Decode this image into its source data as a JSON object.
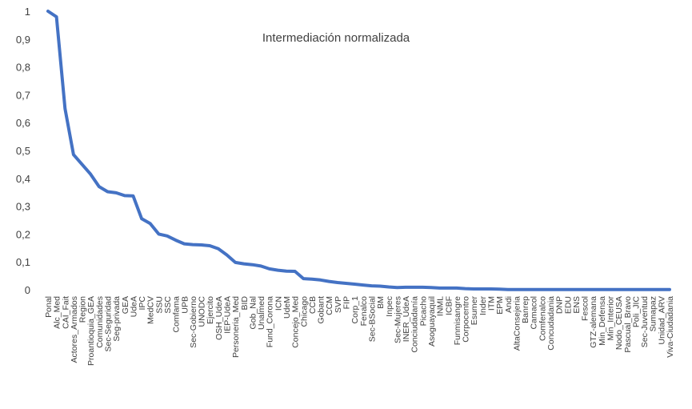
{
  "chart_data": {
    "type": "line",
    "title": "Intermediación normalizada",
    "xlabel": "",
    "ylabel": "",
    "ylim": [
      0,
      1
    ],
    "yticks": [
      "0",
      "0,1",
      "0,2",
      "0,3",
      "0,4",
      "0,5",
      "0,6",
      "0,7",
      "0,8",
      "0,9",
      "1"
    ],
    "grid": false,
    "legend": "none",
    "line_color": "#4472c4",
    "categories": [
      "Ponal",
      "Alc_Med",
      "CAI_Fait",
      "Actores_Armados",
      "Region",
      "Proantioquia_GEA",
      "Comunidades",
      "Sec-Seguridad",
      "Seg-privada",
      "GEA",
      "UdeA",
      "IPC",
      "MedCV",
      "SSU",
      "SSC",
      "Comfama",
      "UPB",
      "Sec-Gobierno",
      "UNODC",
      "Ejercito",
      "OSH_UdeA",
      "IEP-UdeA",
      "Personeria_Med",
      "BID",
      "Gob_Nal",
      "Unalmed",
      "Fund_Corona",
      "ICN",
      "UdeM",
      "Concejo_Med",
      "Chicago",
      "CCB",
      "Gobant",
      "CCM",
      "SVP",
      "FIP",
      "Corp_1",
      "Fenalco",
      "Sec-BSocial",
      "BM",
      "Inpec",
      "Sec-Mujeres",
      "INER_UdeA",
      "Conciudadanía",
      "Picacho",
      "Asoguayaquil",
      "INML",
      "ICBF",
      "Funmisangre",
      "Corpocentro",
      "Esumer",
      "Inder",
      "ITM",
      "EPM",
      "Andi",
      "AltaConsejeria",
      "Banrep",
      "Camacol",
      "Comfenalco",
      "Concudadania",
      "DNP",
      "EDU",
      "ENS",
      "Fescol",
      "GTZ-alemana",
      "Min_Defensa",
      "Min_Interior",
      "Nodo_CEUSA",
      "Pascual_Bravo",
      "Poli_JIC",
      "Sec-Juventud",
      "Sumapaz",
      "Unidad_ARV",
      "Viva-Ciudadania"
    ],
    "values": [
      1.0,
      0.98,
      0.65,
      0.485,
      0.45,
      0.415,
      0.37,
      0.352,
      0.348,
      0.338,
      0.337,
      0.255,
      0.238,
      0.2,
      0.193,
      0.178,
      0.165,
      0.162,
      0.161,
      0.158,
      0.147,
      0.125,
      0.098,
      0.093,
      0.09,
      0.085,
      0.075,
      0.07,
      0.067,
      0.066,
      0.04,
      0.038,
      0.035,
      0.03,
      0.026,
      0.023,
      0.02,
      0.017,
      0.014,
      0.013,
      0.01,
      0.008,
      0.009,
      0.009,
      0.009,
      0.008,
      0.006,
      0.006,
      0.006,
      0.004,
      0.003,
      0.003,
      0.003,
      0.002,
      0.001,
      0.001,
      0.001,
      0.001,
      0.001,
      0.001,
      0.001,
      0.001,
      0.001,
      0.001,
      0.001,
      0.001,
      0.001,
      0.001,
      0.001,
      0.001,
      0.001,
      0.001,
      0.001,
      0.001
    ]
  }
}
